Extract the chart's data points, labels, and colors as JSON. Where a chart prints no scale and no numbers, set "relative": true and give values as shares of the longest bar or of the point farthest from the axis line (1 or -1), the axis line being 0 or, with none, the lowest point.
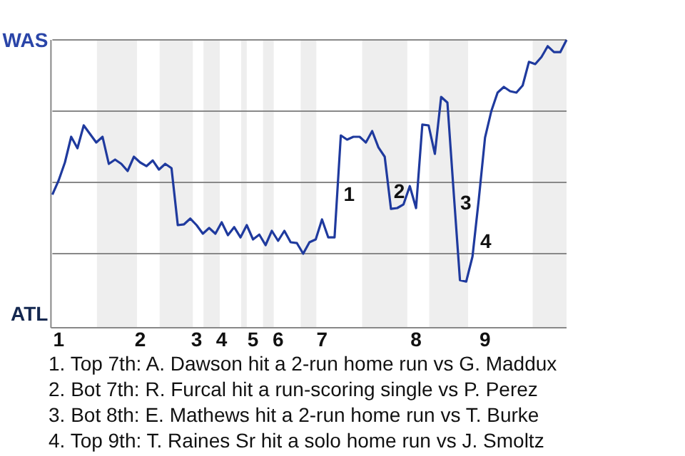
{
  "chart_data": {
    "type": "line",
    "relative": true,
    "categories": [
      null,
      "1",
      null,
      null,
      null,
      null,
      null,
      null,
      null,
      null,
      null,
      null,
      null,
      null,
      "2",
      null,
      null,
      null,
      null,
      null,
      null,
      null,
      null,
      "3",
      null,
      null,
      null,
      "4",
      null,
      null,
      null,
      null,
      "5",
      null,
      null,
      null,
      "6",
      null,
      null,
      null,
      null,
      null,
      null,
      "7",
      null,
      null,
      null,
      null,
      null,
      null,
      null,
      null,
      null,
      null,
      null,
      null,
      null,
      null,
      "8",
      null,
      null,
      null,
      null,
      null,
      null,
      null,
      null,
      null,
      null,
      "9",
      null,
      null,
      null,
      null,
      null,
      null,
      null,
      null,
      null,
      null,
      null,
      null,
      null
    ],
    "series": [
      {
        "color": "#1f3a9e",
        "values": [
          0.457,
          0.507,
          0.57,
          0.66,
          0.62,
          0.7,
          0.67,
          0.64,
          0.66,
          0.565,
          0.58,
          0.565,
          0.54,
          0.59,
          0.57,
          0.557,
          0.577,
          0.545,
          0.565,
          0.55,
          0.35,
          0.353,
          0.373,
          0.35,
          0.32,
          0.34,
          0.32,
          0.36,
          0.315,
          0.343,
          0.307,
          0.35,
          0.3,
          0.317,
          0.28,
          0.33,
          0.295,
          0.33,
          0.29,
          0.287,
          0.25,
          0.29,
          0.3,
          0.37,
          0.307,
          0.307,
          0.665,
          0.65,
          0.66,
          0.66,
          0.64,
          0.68,
          0.623,
          0.59,
          0.407,
          0.41,
          0.423,
          0.487,
          0.41,
          0.703,
          0.7,
          0.6,
          0.8,
          0.78,
          0.465,
          0.157,
          0.152,
          0.24,
          0.44,
          0.657,
          0.75,
          0.815,
          0.835,
          0.82,
          0.815,
          0.84,
          0.923,
          0.915,
          0.94,
          0.978,
          0.957,
          0.957,
          1
        ]
      }
    ],
    "grid": "y",
    "marker": "none",
    "line_style": "solid",
    "annotations": [
      "WAS",
      "ATL",
      "1",
      "2",
      "3",
      "4",
      "1. Top 7th: A. Dawson hit a 2-run home run vs G. Maddux",
      "2. Bot 7th: R. Furcal hit a run-scoring single vs P. Perez",
      "3. Bot 8th: E. Mathews hit a 2-run home run vs T. Burke",
      "4. Top 9th: T. Raines Sr hit a solo home run vs J. Smoltz"
    ]
  }
}
